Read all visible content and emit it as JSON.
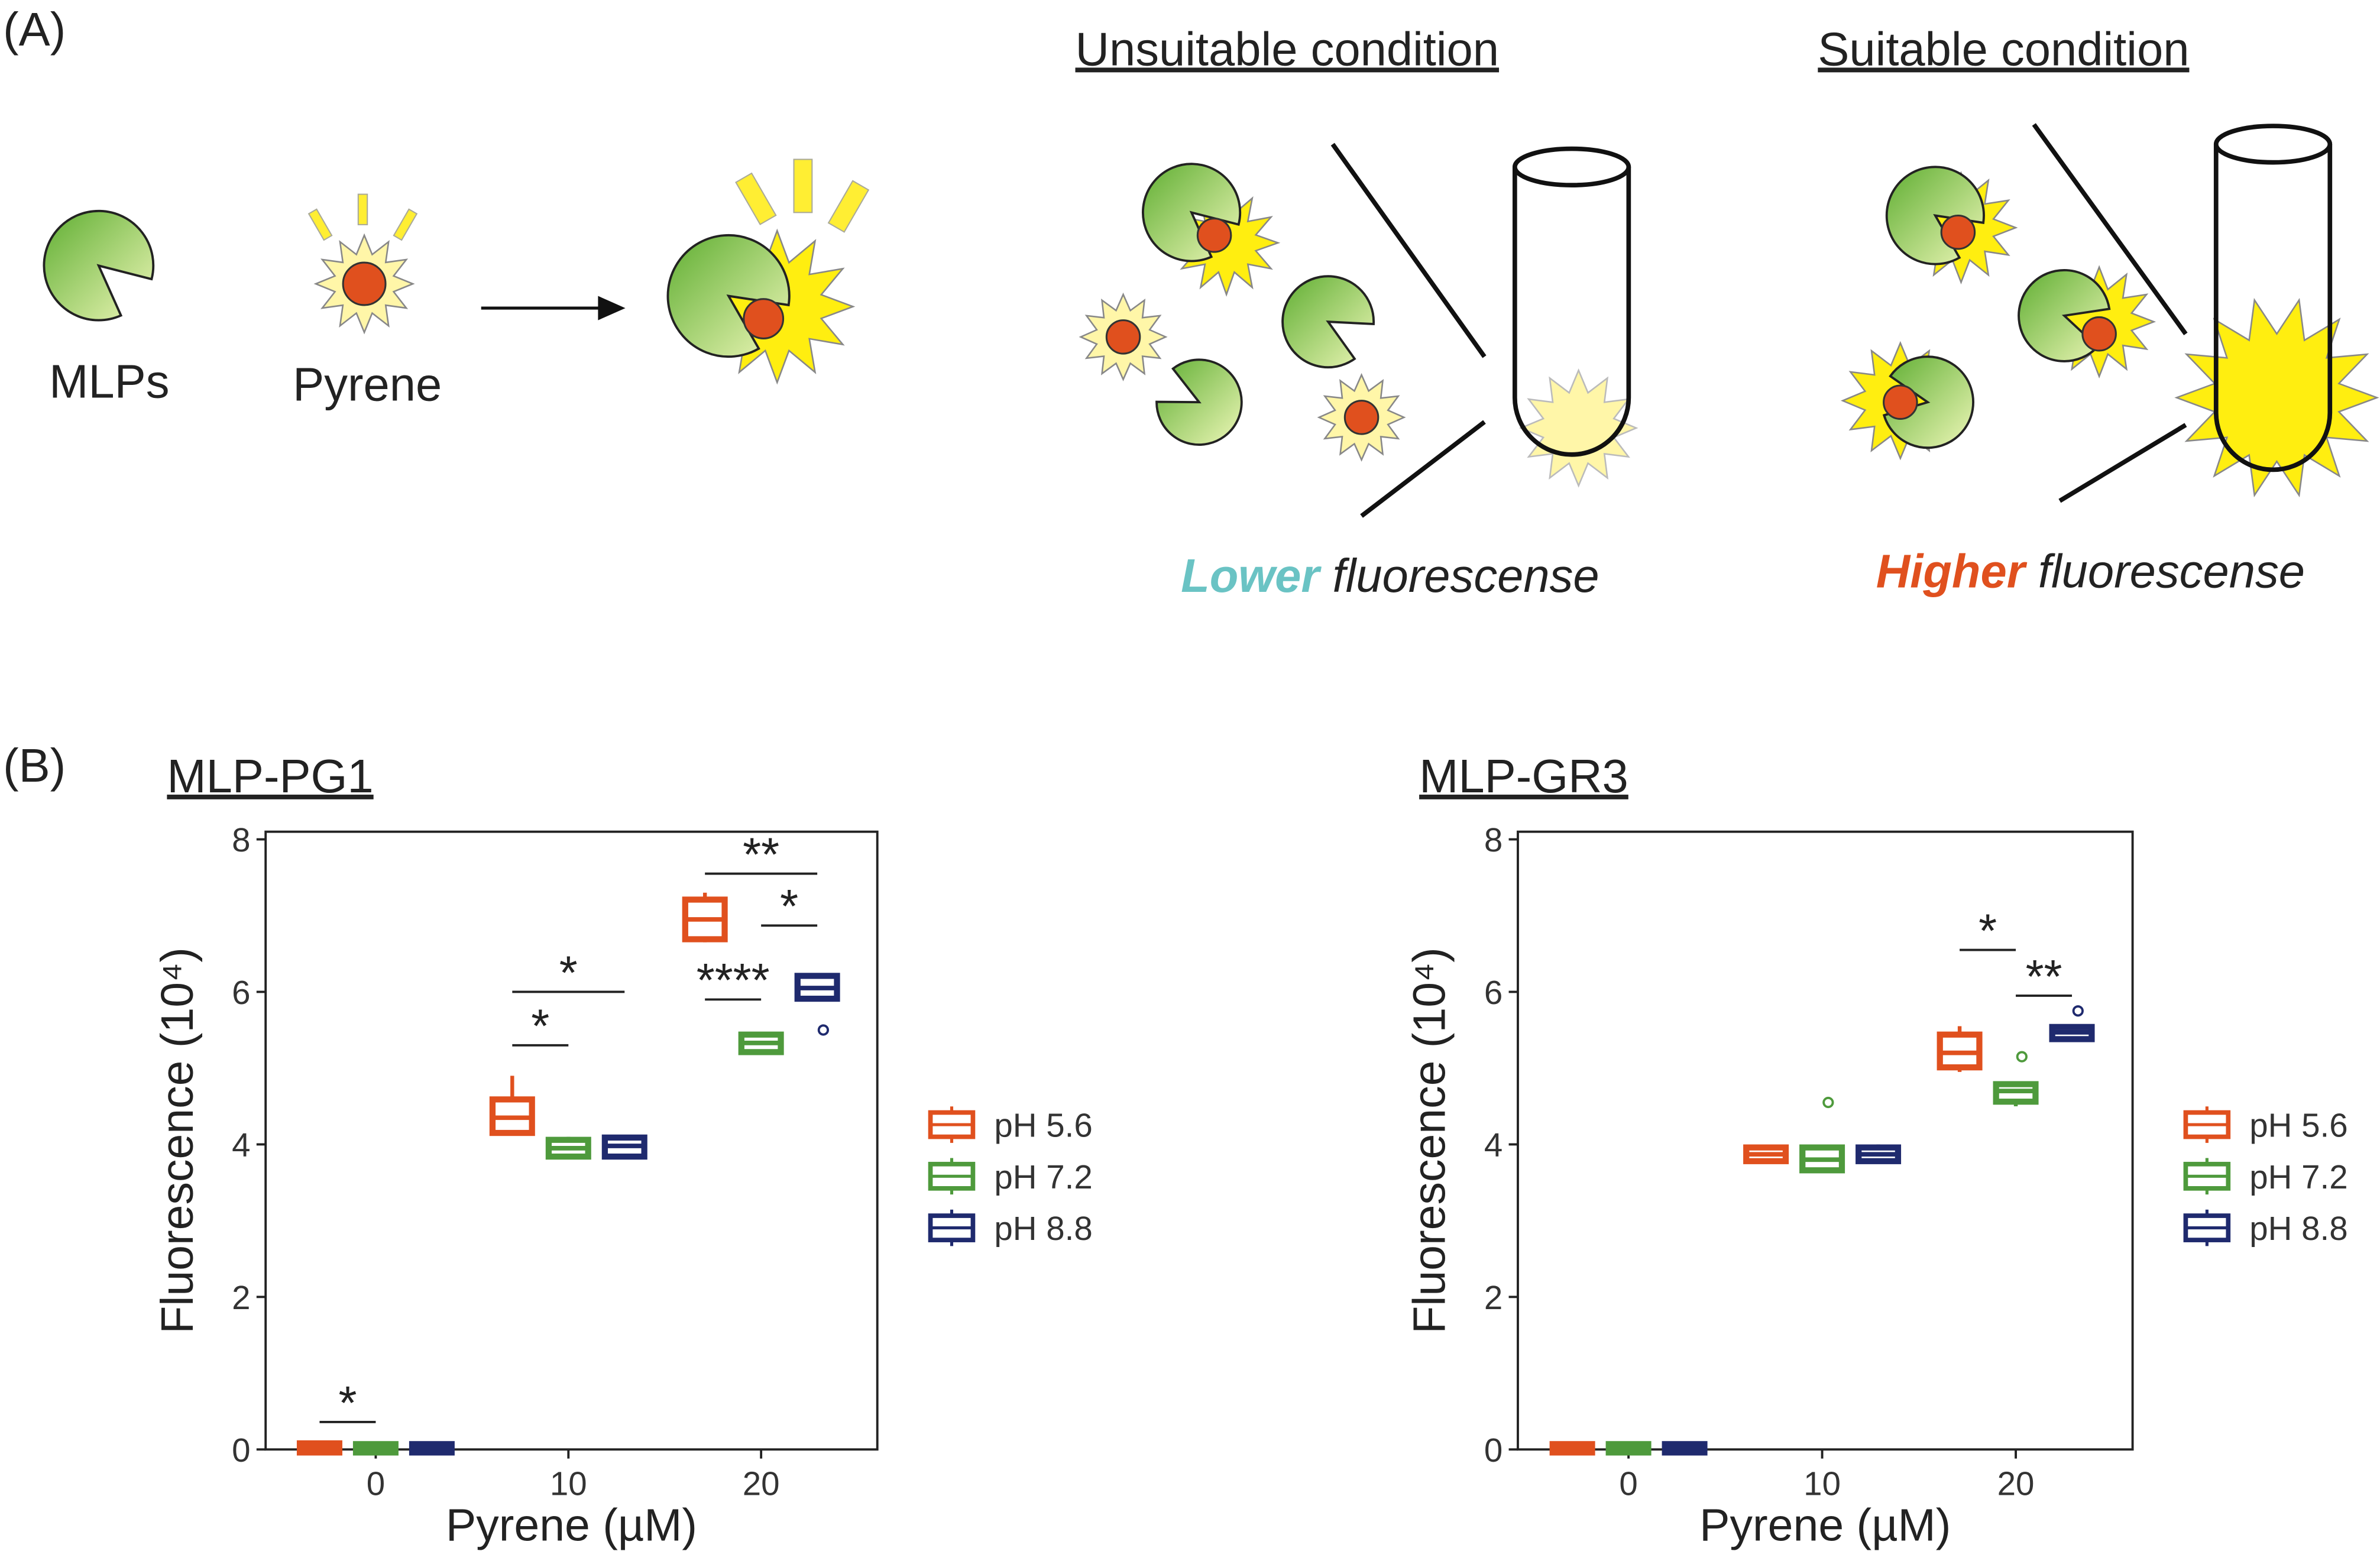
{
  "diagram": {
    "panel_a": "(A)",
    "panel_b": "(B)",
    "mlps": "MLPs",
    "pyrene": "Pyrene",
    "unsuitable": "Unsuitable condition",
    "suitable": "Suitable condition",
    "lower": "Lower",
    "higher": "Higher",
    "fluorescence_1": "fluorescense",
    "fluorescence_2": "fluorescense"
  },
  "chart_data": [
    {
      "type": "box",
      "title": "MLP-PG1",
      "x_label": "Pyrene (µM)",
      "y_label": "Fluorescence (10⁴)",
      "categories": [
        "0",
        "10",
        "20"
      ],
      "ylim": [
        0,
        8.1
      ],
      "yticks": [
        0,
        2,
        4,
        6,
        8
      ],
      "legend": "right",
      "series": [
        {
          "name": "pH 5.6",
          "color": "#e0501e",
          "whisker_low": [
            0,
            4.2,
            6.65
          ],
          "q1": [
            0,
            4.19,
            6.73
          ],
          "median": [
            0.02,
            4.35,
            6.95
          ],
          "q3": [
            0.04,
            4.55,
            7.17
          ],
          "whisker_high": [
            0.05,
            4.9,
            7.3
          ],
          "outliers": [
            [],
            [],
            []
          ]
        },
        {
          "name": "pH 7.2",
          "color": "#4e9a3c",
          "whisker_low": [
            0,
            3.85,
            5.2
          ],
          "q1": [
            0,
            3.88,
            5.25
          ],
          "median": [
            0.02,
            3.95,
            5.33
          ],
          "q3": [
            0.03,
            4.02,
            5.4
          ],
          "whisker_high": [
            0.04,
            4.1,
            5.45
          ],
          "outliers": [
            [],
            [],
            []
          ]
        },
        {
          "name": "pH 8.8",
          "color": "#1f2a6e",
          "whisker_low": [
            0,
            3.85,
            5.95
          ],
          "q1": [
            0,
            3.88,
            5.95
          ],
          "median": [
            0.02,
            3.98,
            6.05
          ],
          "q3": [
            0.03,
            4.05,
            6.17
          ],
          "whisker_high": [
            0.04,
            4.1,
            6.15
          ],
          "outliers": [
            [],
            [],
            [
              5.5
            ]
          ]
        }
      ],
      "annotations": [
        {
          "label": "*",
          "category": 0,
          "from": 0,
          "to": 1,
          "y": 0.36
        },
        {
          "label": "*",
          "category": 1,
          "from": 0,
          "to": 1,
          "y": 5.3
        },
        {
          "label": "*",
          "category": 1,
          "from": 0,
          "to": 2,
          "y": 6.0
        },
        {
          "label": "**",
          "category": 2,
          "from": 0,
          "to": 2,
          "y": 7.55
        },
        {
          "label": "*",
          "category": 2,
          "from": 1,
          "to": 2,
          "y": 6.87
        },
        {
          "label": "****",
          "category": 2,
          "from": 0,
          "to": 1,
          "y": 5.9
        }
      ]
    },
    {
      "type": "box",
      "title": "MLP-GR3",
      "x_label": "Pyrene (µM)",
      "y_label": "Fluorescence (10⁴)",
      "categories": [
        "0",
        "10",
        "20"
      ],
      "ylim": [
        0,
        8.1
      ],
      "yticks": [
        0,
        2,
        4,
        6,
        8
      ],
      "legend": "right",
      "series": [
        {
          "name": "pH 5.6",
          "color": "#e0501e",
          "whisker_low": [
            0,
            3.8,
            4.95
          ],
          "q1": [
            0,
            3.82,
            5.05
          ],
          "median": [
            0.02,
            3.87,
            5.2
          ],
          "q3": [
            0.03,
            3.92,
            5.4
          ],
          "whisker_high": [
            0.04,
            3.95,
            5.55
          ],
          "outliers": [
            [],
            [],
            []
          ]
        },
        {
          "name": "pH 7.2",
          "color": "#4e9a3c",
          "whisker_low": [
            0,
            3.65,
            4.5
          ],
          "q1": [
            0,
            3.7,
            4.6
          ],
          "median": [
            0.02,
            3.8,
            4.7
          ],
          "q3": [
            0.03,
            3.92,
            4.75
          ],
          "whisker_high": [
            0.04,
            3.92,
            4.75
          ],
          "outliers": [
            [],
            [
              4.55
            ],
            [
              5.15
            ]
          ]
        },
        {
          "name": "pH 8.8",
          "color": "#1f2a6e",
          "whisker_low": [
            0,
            3.8,
            5.42
          ],
          "q1": [
            0,
            3.82,
            5.42
          ],
          "median": [
            0.02,
            3.87,
            5.47
          ],
          "q3": [
            0.03,
            3.92,
            5.5
          ],
          "whisker_high": [
            0.04,
            4.0,
            5.5
          ],
          "outliers": [
            [],
            [],
            [
              5.75
            ]
          ]
        }
      ],
      "annotations": [
        {
          "label": "*",
          "category": 2,
          "from": 0,
          "to": 1,
          "y": 6.55
        },
        {
          "label": "**",
          "category": 2,
          "from": 1,
          "to": 2,
          "y": 5.95
        }
      ]
    }
  ]
}
